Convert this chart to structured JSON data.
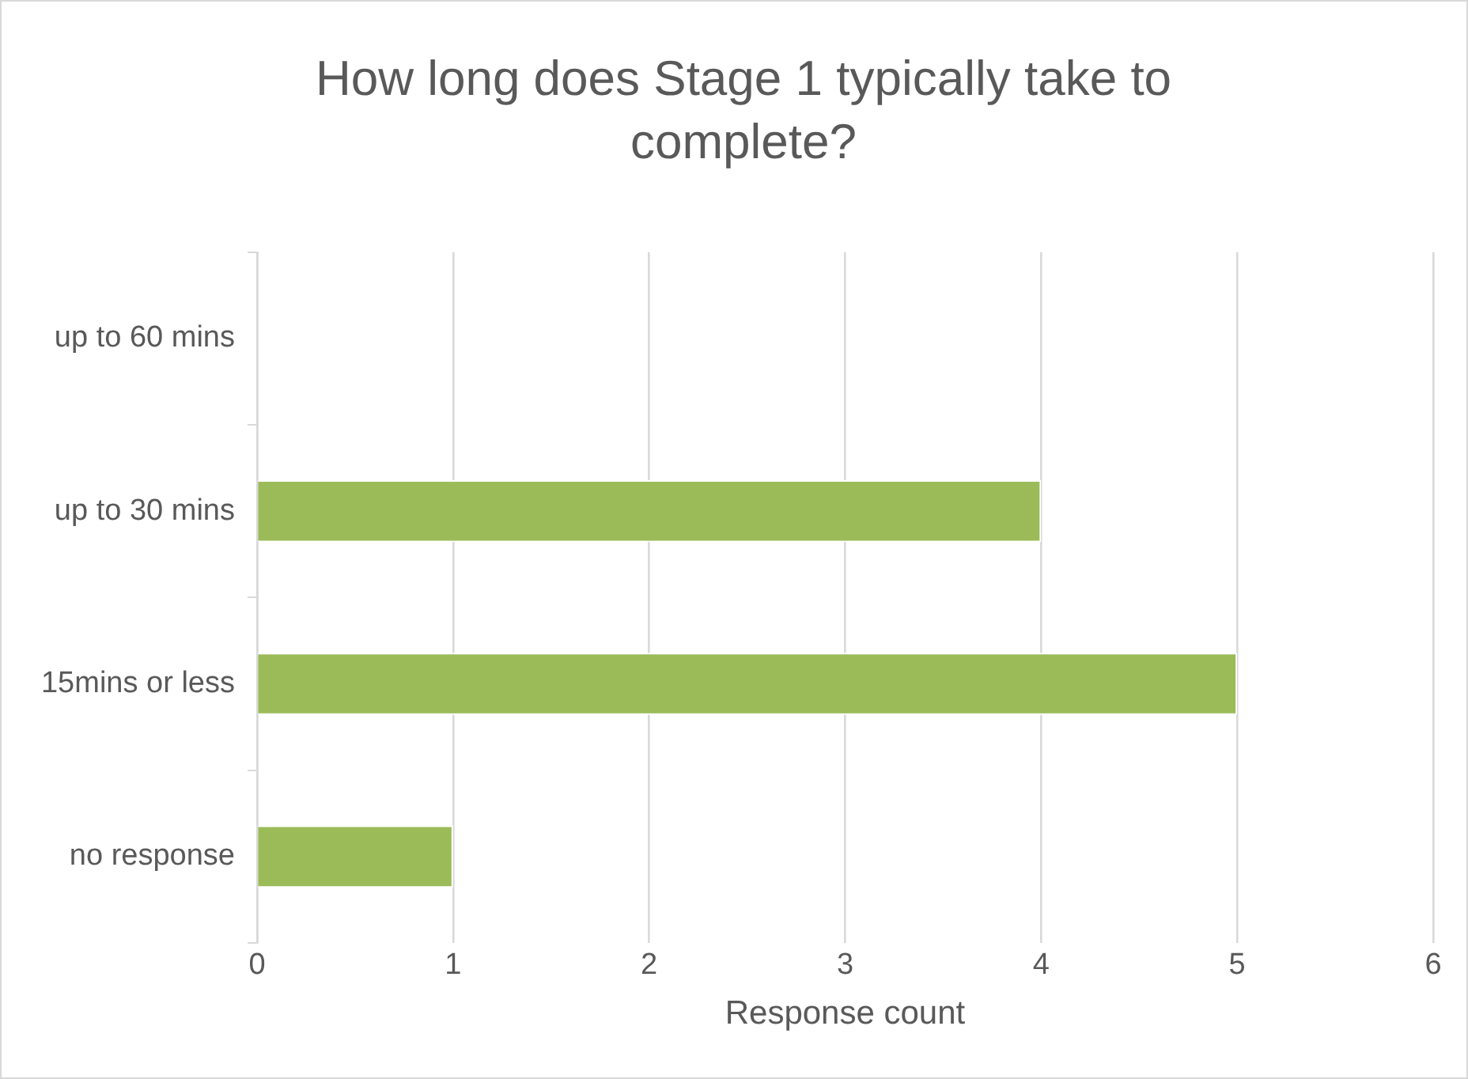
{
  "chart_data": {
    "type": "bar",
    "orientation": "horizontal",
    "title": "How long does Stage 1 typically take to complete?",
    "xlabel": "Response count",
    "categories": [
      "up to 60 mins",
      "up to 30 mins",
      "15mins or less",
      "no response"
    ],
    "values": [
      0,
      4,
      5,
      1
    ],
    "color": "#9bbb59",
    "xlim": [
      0,
      6
    ],
    "xticks": [
      0,
      1,
      2,
      3,
      4,
      5,
      6
    ],
    "grid": "x",
    "legend": false
  }
}
